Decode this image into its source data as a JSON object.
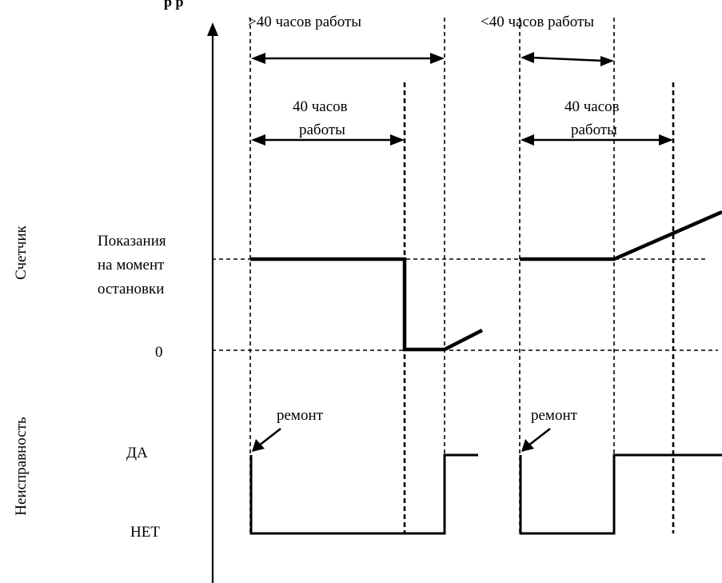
{
  "title_fragment": "р р",
  "top_labels": {
    "over": ">40 часов работы",
    "under": "<40 часов работы"
  },
  "interval_labels": {
    "first_line1": "40 часов",
    "first_line2": "работы",
    "second_line1": "40 часов",
    "second_line2": "работы"
  },
  "axis_groups": {
    "counter": "Счетчик",
    "fault": "Неисправность"
  },
  "levels": {
    "stop_line1": "Показания",
    "stop_line2": "на момент",
    "stop_line3": "остановки",
    "zero": "0",
    "yes": "ДА",
    "no": "НЕТ"
  },
  "annotations": {
    "repair_1": "ремонт",
    "repair_2": "ремонт"
  }
}
